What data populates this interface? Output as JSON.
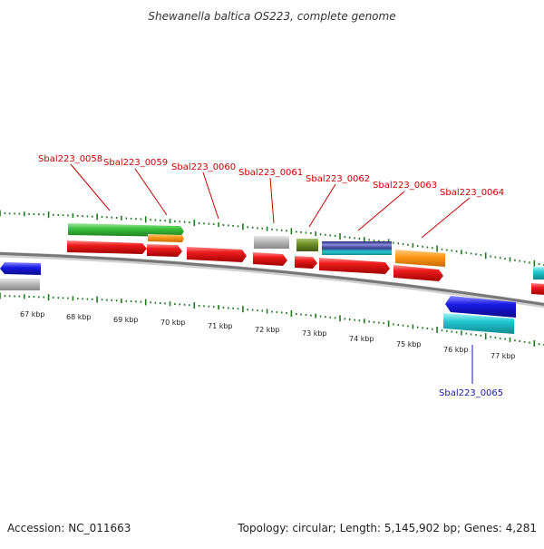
{
  "title": "Shewanella baltica OS223, complete genome",
  "footer": {
    "accession": "Accession: NC_011663",
    "summary": "Topology: circular; Length: 5,145,902 bp; Genes: 4,281"
  },
  "scale": {
    "unit": "kbp",
    "ticks": [
      "67 kbp",
      "68 kbp",
      "69 kbp",
      "70 kbp",
      "71 kbp",
      "72 kbp",
      "73 kbp",
      "74 kbp",
      "75 kbp",
      "76 kbp",
      "77 kbp"
    ]
  },
  "colors": {
    "background": "#ffffff",
    "backbone": "#777777",
    "tick_marks": "#1e7a1e",
    "forward_label": "#cc0000",
    "reverse_label": "#1a1aa6",
    "cds": "#ee1c1c",
    "gene_green": "#3bc13b",
    "gene_orange": "#ff9a1a",
    "gene_gray": "#b8b8b8",
    "gene_olive": "#6b8e23",
    "gene_blue": "#1a1ae6",
    "gene_cyan": "#22c8d0",
    "gene_navy": "#3a3a8c"
  },
  "labels": [
    {
      "text": "Sbal223_0058",
      "strand": "forward"
    },
    {
      "text": "Sbal223_0059",
      "strand": "forward"
    },
    {
      "text": "Sbal223_0060",
      "strand": "forward"
    },
    {
      "text": "Sbal223_0061",
      "strand": "forward"
    },
    {
      "text": "Sbal223_0062",
      "strand": "forward"
    },
    {
      "text": "Sbal223_0063",
      "strand": "forward"
    },
    {
      "text": "Sbal223_0064",
      "strand": "forward"
    },
    {
      "text": "Sbal223_0065",
      "strand": "reverse"
    }
  ]
}
